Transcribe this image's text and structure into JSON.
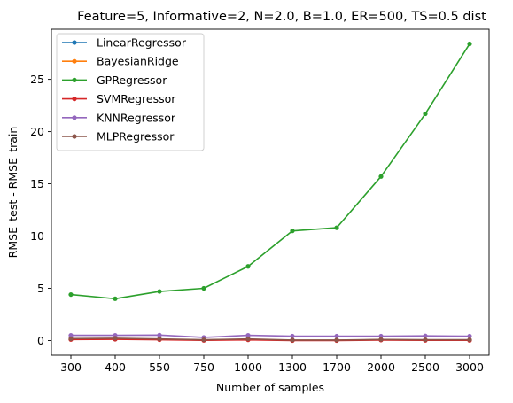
{
  "chart_data": {
    "type": "line",
    "title": "Feature=5, Informative=2, N=2.0, B=1.0, ER=500, TS=0.5 dist",
    "xlabel": "Number of samples",
    "ylabel": "RMSE_test - RMSE_train",
    "categories": [
      "300",
      "400",
      "550",
      "750",
      "1000",
      "1300",
      "1700",
      "2000",
      "2500",
      "3000"
    ],
    "ylim": [
      -1.4,
      29.8
    ],
    "yticks": [
      0,
      5,
      10,
      15,
      20,
      25
    ],
    "grid": false,
    "legend_position": "top-left",
    "series": [
      {
        "name": "LinearRegressor",
        "color": "#1f77b4",
        "values": [
          0.12,
          0.15,
          0.12,
          0.05,
          0.1,
          0.03,
          0.03,
          0.08,
          0.05,
          0.05
        ]
      },
      {
        "name": "BayesianRidge",
        "color": "#ff7f0e",
        "values": [
          0.12,
          0.15,
          0.12,
          0.05,
          0.1,
          0.03,
          0.03,
          0.08,
          0.05,
          0.05
        ]
      },
      {
        "name": "GPRegressor",
        "color": "#2ca02c",
        "values": [
          4.4,
          4.0,
          4.7,
          5.0,
          7.1,
          10.5,
          10.8,
          15.7,
          21.7,
          28.4
        ]
      },
      {
        "name": "SVMRegressor",
        "color": "#d62728",
        "values": [
          0.1,
          0.12,
          0.08,
          0.02,
          0.07,
          0.0,
          0.0,
          0.05,
          0.02,
          0.02
        ]
      },
      {
        "name": "KNNRegressor",
        "color": "#9467bd",
        "values": [
          0.5,
          0.5,
          0.52,
          0.3,
          0.5,
          0.42,
          0.42,
          0.42,
          0.45,
          0.42
        ]
      },
      {
        "name": "MLPRegressor",
        "color": "#8c564b",
        "values": [
          0.18,
          0.22,
          0.15,
          0.08,
          0.15,
          0.05,
          0.05,
          0.1,
          0.08,
          0.08
        ]
      }
    ]
  }
}
